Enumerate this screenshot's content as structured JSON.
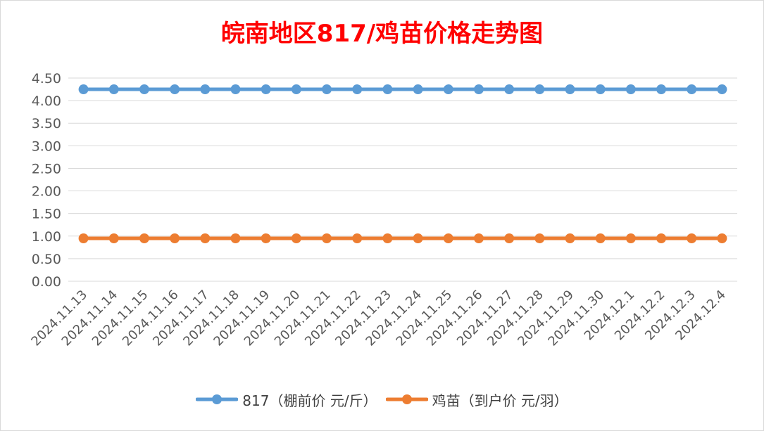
{
  "chart_data": {
    "type": "line",
    "title": "皖南地区817/鸡苗价格走势图",
    "title_color": "#ff0000",
    "categories": [
      "2024.11.13",
      "2024.11.14",
      "2024.11.15",
      "2024.11.16",
      "2024.11.17",
      "2024.11.18",
      "2024.11.19",
      "2024.11.20",
      "2024.11.21",
      "2024.11.22",
      "2024.11.23",
      "2024.11.24",
      "2024.11.25",
      "2024.11.26",
      "2024.11.27",
      "2024.11.28",
      "2024.11.29",
      "2024.11.30",
      "2024.12.1",
      "2024.12.2",
      "2024.12.3",
      "2024.12.4"
    ],
    "series": [
      {
        "name": "817（棚前价 元/斤）",
        "color": "#5b9bd5",
        "values": [
          4.25,
          4.25,
          4.25,
          4.25,
          4.25,
          4.25,
          4.25,
          4.25,
          4.25,
          4.25,
          4.25,
          4.25,
          4.25,
          4.25,
          4.25,
          4.25,
          4.25,
          4.25,
          4.25,
          4.25,
          4.25,
          4.25
        ]
      },
      {
        "name": "鸡苗（到户价 元/羽）",
        "color": "#ed7d31",
        "values": [
          0.95,
          0.95,
          0.95,
          0.95,
          0.95,
          0.95,
          0.95,
          0.95,
          0.95,
          0.95,
          0.95,
          0.95,
          0.95,
          0.95,
          0.95,
          0.95,
          0.95,
          0.95,
          0.95,
          0.95,
          0.95,
          0.95
        ]
      }
    ],
    "ylim": [
      0,
      4.5
    ],
    "yticks": [
      "0.00",
      "0.50",
      "1.00",
      "1.50",
      "2.00",
      "2.50",
      "3.00",
      "3.50",
      "4.00",
      "4.50"
    ],
    "xlabel": "",
    "ylabel": "",
    "grid": true,
    "legend_position": "bottom"
  }
}
